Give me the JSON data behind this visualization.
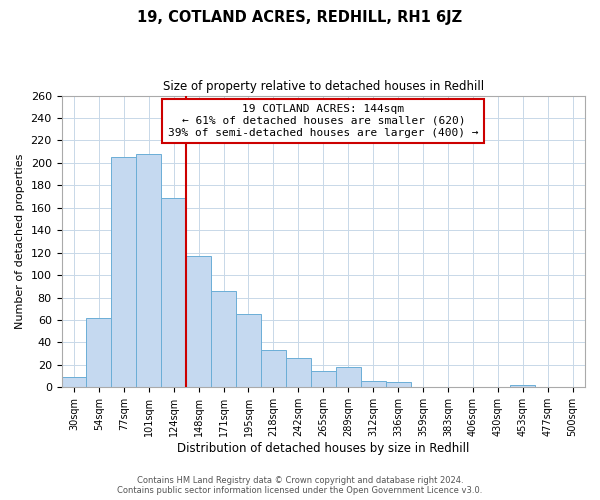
{
  "title": "19, COTLAND ACRES, REDHILL, RH1 6JZ",
  "subtitle": "Size of property relative to detached houses in Redhill",
  "xlabel": "Distribution of detached houses by size in Redhill",
  "ylabel": "Number of detached properties",
  "bin_labels": [
    "30sqm",
    "54sqm",
    "77sqm",
    "101sqm",
    "124sqm",
    "148sqm",
    "171sqm",
    "195sqm",
    "218sqm",
    "242sqm",
    "265sqm",
    "289sqm",
    "312sqm",
    "336sqm",
    "359sqm",
    "383sqm",
    "406sqm",
    "430sqm",
    "453sqm",
    "477sqm",
    "500sqm"
  ],
  "bar_heights": [
    9,
    62,
    205,
    208,
    169,
    117,
    86,
    65,
    33,
    26,
    15,
    18,
    6,
    5,
    0,
    0,
    0,
    0,
    2,
    0,
    0
  ],
  "bar_color": "#c5d9f0",
  "bar_edge_color": "#6baed6",
  "property_line_label": "19 COTLAND ACRES: 144sqm",
  "annotation_line1": "← 61% of detached houses are smaller (620)",
  "annotation_line2": "39% of semi-detached houses are larger (400) →",
  "annotation_box_color": "#ffffff",
  "annotation_box_edge_color": "#cc0000",
  "property_line_color": "#cc0000",
  "ylim": [
    0,
    260
  ],
  "yticks": [
    0,
    20,
    40,
    60,
    80,
    100,
    120,
    140,
    160,
    180,
    200,
    220,
    240,
    260
  ],
  "footer_line1": "Contains HM Land Registry data © Crown copyright and database right 2024.",
  "footer_line2": "Contains public sector information licensed under the Open Government Licence v3.0.",
  "background_color": "#ffffff",
  "grid_color": "#c8d8e8"
}
